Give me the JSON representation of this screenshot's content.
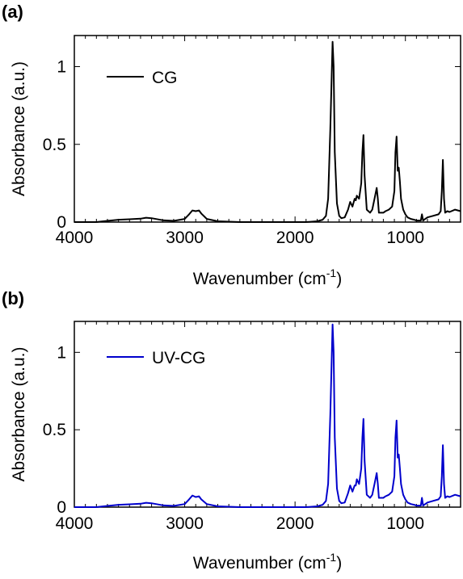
{
  "chart_data": [
    {
      "type": "line",
      "panel_label": "(a)",
      "xlabel": "Wavenumber (cm",
      "xlabel_sup": "-1",
      "xlabel_close": ")",
      "ylabel": "Absorbance (a.u.)",
      "xlim": [
        4000,
        500
      ],
      "ylim": [
        0,
        1.2
      ],
      "x_reversed": true,
      "xticks": [
        4000,
        3000,
        2000,
        1000
      ],
      "xtick_labels": [
        "4000",
        "3000",
        "2000",
        "1000"
      ],
      "yticks": [
        0,
        0.5,
        1
      ],
      "ytick_labels": [
        "0",
        "0.5",
        "1"
      ],
      "grid": false,
      "legend_position": "top-left",
      "series": [
        {
          "name": "CG",
          "color": "#000000",
          "x": [
            4000,
            3800,
            3700,
            3600,
            3500,
            3400,
            3350,
            3300,
            3200,
            3100,
            3000,
            2960,
            2930,
            2900,
            2870,
            2850,
            2800,
            2700,
            2500,
            2300,
            2100,
            2000,
            1900,
            1800,
            1750,
            1720,
            1700,
            1680,
            1660,
            1650,
            1640,
            1620,
            1600,
            1580,
            1550,
            1520,
            1500,
            1480,
            1460,
            1450,
            1440,
            1420,
            1400,
            1390,
            1380,
            1370,
            1350,
            1320,
            1300,
            1280,
            1260,
            1250,
            1240,
            1220,
            1200,
            1180,
            1150,
            1120,
            1100,
            1090,
            1080,
            1070,
            1060,
            1050,
            1040,
            1020,
            1000,
            980,
            950,
            920,
            900,
            880,
            860,
            850,
            840,
            820,
            800,
            750,
            700,
            680,
            670,
            660,
            650,
            640,
            620,
            600,
            550,
            500
          ],
          "y": [
            0.0,
            0.0,
            0.008,
            0.015,
            0.018,
            0.022,
            0.028,
            0.025,
            0.012,
            0.008,
            0.02,
            0.05,
            0.075,
            0.07,
            0.075,
            0.055,
            0.02,
            0.005,
            0.0,
            0.0,
            0.0,
            0.0,
            0.0,
            0.005,
            0.015,
            0.04,
            0.15,
            0.6,
            1.16,
            1.0,
            0.45,
            0.12,
            0.04,
            0.025,
            0.03,
            0.08,
            0.13,
            0.1,
            0.15,
            0.14,
            0.17,
            0.15,
            0.25,
            0.45,
            0.56,
            0.3,
            0.08,
            0.06,
            0.08,
            0.15,
            0.22,
            0.15,
            0.06,
            0.06,
            0.06,
            0.07,
            0.08,
            0.1,
            0.2,
            0.45,
            0.55,
            0.33,
            0.35,
            0.26,
            0.15,
            0.08,
            0.05,
            0.03,
            0.02,
            0.015,
            0.01,
            0.01,
            0.01,
            0.05,
            0.01,
            0.02,
            0.03,
            0.04,
            0.05,
            0.07,
            0.2,
            0.4,
            0.15,
            0.06,
            0.07,
            0.065,
            0.08,
            0.07
          ]
        }
      ]
    },
    {
      "type": "line",
      "panel_label": "(b)",
      "xlabel": "Wavenumber (cm",
      "xlabel_sup": "-1",
      "xlabel_close": ")",
      "ylabel": "Absorbance (a.u.)",
      "xlim": [
        4000,
        500
      ],
      "ylim": [
        0,
        1.2
      ],
      "x_reversed": true,
      "xticks": [
        4000,
        3000,
        2000,
        1000
      ],
      "xtick_labels": [
        "4000",
        "3000",
        "2000",
        "1000"
      ],
      "yticks": [
        0,
        0.5,
        1
      ],
      "ytick_labels": [
        "0",
        "0.5",
        "1"
      ],
      "grid": false,
      "legend_position": "top-left",
      "series": [
        {
          "name": "UV-CG",
          "color": "#0000cc",
          "x": [
            4000,
            3800,
            3700,
            3600,
            3500,
            3400,
            3350,
            3300,
            3200,
            3100,
            3000,
            2960,
            2930,
            2900,
            2870,
            2850,
            2800,
            2700,
            2500,
            2300,
            2100,
            2000,
            1900,
            1800,
            1750,
            1720,
            1700,
            1680,
            1660,
            1650,
            1640,
            1620,
            1600,
            1580,
            1550,
            1520,
            1500,
            1480,
            1460,
            1450,
            1440,
            1420,
            1400,
            1390,
            1380,
            1370,
            1350,
            1320,
            1300,
            1280,
            1260,
            1250,
            1240,
            1220,
            1200,
            1180,
            1150,
            1120,
            1100,
            1090,
            1080,
            1070,
            1060,
            1050,
            1040,
            1020,
            1000,
            980,
            950,
            920,
            900,
            880,
            860,
            850,
            840,
            820,
            800,
            750,
            700,
            680,
            670,
            660,
            650,
            640,
            620,
            600,
            550,
            500
          ],
          "y": [
            0.0,
            0.0,
            0.008,
            0.015,
            0.018,
            0.022,
            0.028,
            0.025,
            0.012,
            0.008,
            0.02,
            0.05,
            0.075,
            0.065,
            0.07,
            0.05,
            0.02,
            0.005,
            0.0,
            0.0,
            0.0,
            0.0,
            0.0,
            0.005,
            0.015,
            0.04,
            0.15,
            0.6,
            1.18,
            1.0,
            0.45,
            0.12,
            0.04,
            0.025,
            0.03,
            0.09,
            0.14,
            0.1,
            0.14,
            0.14,
            0.18,
            0.15,
            0.25,
            0.45,
            0.57,
            0.3,
            0.08,
            0.06,
            0.08,
            0.15,
            0.22,
            0.15,
            0.06,
            0.06,
            0.06,
            0.07,
            0.08,
            0.1,
            0.2,
            0.45,
            0.56,
            0.32,
            0.34,
            0.25,
            0.15,
            0.08,
            0.05,
            0.03,
            0.02,
            0.015,
            0.01,
            0.01,
            0.01,
            0.06,
            0.01,
            0.02,
            0.03,
            0.04,
            0.05,
            0.07,
            0.2,
            0.4,
            0.15,
            0.06,
            0.07,
            0.065,
            0.08,
            0.07
          ]
        }
      ]
    }
  ]
}
